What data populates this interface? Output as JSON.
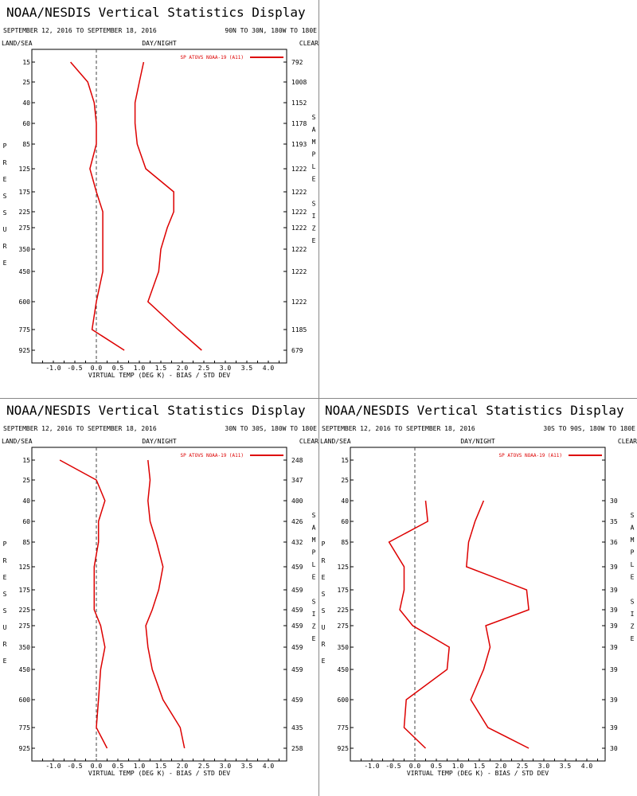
{
  "page_title": "NOAA/NESDIS Vertical Statistics Display",
  "colors": {
    "series": "#dd0000",
    "axis": "#000000",
    "zero_line": "#444444"
  },
  "x_axis": {
    "label": "VIRTUAL TEMP (DEG K) - BIAS / STD DEV",
    "ticks": [
      "-1.0",
      "-0.5",
      "0.0",
      "0.5",
      "1.0",
      "1.5",
      "2.0",
      "2.5",
      "3.0",
      "3.5",
      "4.0"
    ]
  },
  "pressure_levels": [
    "15",
    "25",
    "40",
    "60",
    "85",
    "125",
    "175",
    "225",
    "275",
    "350",
    "450",
    "600",
    "775",
    "925"
  ],
  "left_vertical_label": [
    "P",
    "R",
    "E",
    "S",
    "S",
    "U",
    "R",
    "E"
  ],
  "right_vertical_label": [
    "S",
    "A",
    "M",
    "P",
    "L",
    "E",
    "",
    "S",
    "I",
    "Z",
    "E"
  ],
  "chart_data": [
    {
      "type": "line",
      "title": "NOAA/NESDIS Vertical Statistics Display",
      "date_range": "SEPTEMBER 12, 2016 TO SEPTEMBER 18, 2016",
      "region": "90N TO 30N, 180W TO 180E",
      "land_sea": "LAND/SEA",
      "day_night": "DAY/NIGHT",
      "clear": "CLEAR",
      "xlabel": "VIRTUAL TEMP (DEG K) - BIAS / STD DEV",
      "ylabel": "PRESSURE",
      "xlim": [
        -1.5,
        4.5
      ],
      "legend": "SP ATOVS NOAA-19 (A11)",
      "legend_position": "top-right",
      "y_levels": [
        "15",
        "25",
        "40",
        "60",
        "85",
        "125",
        "175",
        "225",
        "275",
        "350",
        "450",
        "600",
        "775",
        "925"
      ],
      "sample_size": [
        "792",
        "1008",
        "1152",
        "1178",
        "1193",
        "1222",
        "1222",
        "1222",
        "1222",
        "1222",
        "1222",
        "1222",
        "1185",
        "679"
      ],
      "series": [
        {
          "name": "bias",
          "values": [
            -0.6,
            -0.2,
            -0.05,
            0.0,
            0.0,
            -0.15,
            0.0,
            0.15,
            0.15,
            0.15,
            0.15,
            0.0,
            -0.1,
            0.65
          ]
        },
        {
          "name": "std_dev",
          "values": [
            1.1,
            1.0,
            0.9,
            0.9,
            0.95,
            1.15,
            1.8,
            1.8,
            1.65,
            1.5,
            1.45,
            1.2,
            1.9,
            2.45
          ]
        }
      ]
    },
    {
      "type": "line",
      "title": "NOAA/NESDIS Vertical Statistics Display",
      "date_range": "SEPTEMBER 12, 2016 TO SEPTEMBER 18, 2016",
      "region": "30N TO 30S, 180W TO 180E",
      "land_sea": "LAND/SEA",
      "day_night": "DAY/NIGHT",
      "clear": "CLEAR",
      "xlabel": "VIRTUAL TEMP (DEG K) - BIAS / STD DEV",
      "ylabel": "PRESSURE",
      "xlim": [
        -1.5,
        4.5
      ],
      "legend": "SP ATOVS NOAA-19 (A11)",
      "legend_position": "top-right",
      "y_levels": [
        "15",
        "25",
        "40",
        "60",
        "85",
        "125",
        "175",
        "225",
        "275",
        "350",
        "450",
        "600",
        "775",
        "925"
      ],
      "sample_size": [
        "248",
        "347",
        "400",
        "426",
        "432",
        "459",
        "459",
        "459",
        "459",
        "459",
        "459",
        "459",
        "435",
        "258"
      ],
      "series": [
        {
          "name": "bias",
          "values": [
            -0.85,
            0.0,
            0.2,
            0.05,
            0.05,
            -0.05,
            -0.05,
            -0.05,
            0.1,
            0.2,
            0.1,
            0.05,
            0.0,
            0.25
          ]
        },
        {
          "name": "std_dev",
          "values": [
            1.2,
            1.25,
            1.2,
            1.25,
            1.4,
            1.55,
            1.45,
            1.3,
            1.15,
            1.2,
            1.3,
            1.55,
            1.95,
            2.05
          ]
        }
      ]
    },
    {
      "type": "line",
      "title": "NOAA/NESDIS Vertical Statistics Display",
      "date_range": "SEPTEMBER 12, 2016 TO SEPTEMBER 18, 2016",
      "region": "30S TO 90S, 180W TO 180E",
      "land_sea": "LAND/SEA",
      "day_night": "DAY/NIGHT",
      "clear": "CLEAR",
      "xlabel": "VIRTUAL TEMP (DEG K) - BIAS / STD DEV",
      "ylabel": "PRESSURE",
      "xlim": [
        -1.5,
        4.5
      ],
      "legend": "SP ATOVS NOAA-19 (A11)",
      "legend_position": "top-right",
      "y_levels": [
        "15",
        "25",
        "40",
        "60",
        "85",
        "125",
        "175",
        "225",
        "275",
        "350",
        "450",
        "600",
        "775",
        "925"
      ],
      "sample_size": [
        "",
        "",
        "30",
        "35",
        "36",
        "39",
        "39",
        "39",
        "39",
        "39",
        "39",
        "39",
        "39",
        "30"
      ],
      "series": [
        {
          "name": "bias",
          "values": [
            null,
            null,
            0.25,
            0.3,
            -0.6,
            -0.25,
            -0.25,
            -0.35,
            -0.05,
            0.8,
            0.75,
            -0.2,
            -0.25,
            0.25
          ]
        },
        {
          "name": "std_dev",
          "values": [
            null,
            null,
            1.6,
            1.4,
            1.25,
            1.2,
            2.6,
            2.65,
            1.65,
            1.75,
            1.6,
            1.3,
            1.7,
            2.65
          ]
        }
      ]
    }
  ]
}
